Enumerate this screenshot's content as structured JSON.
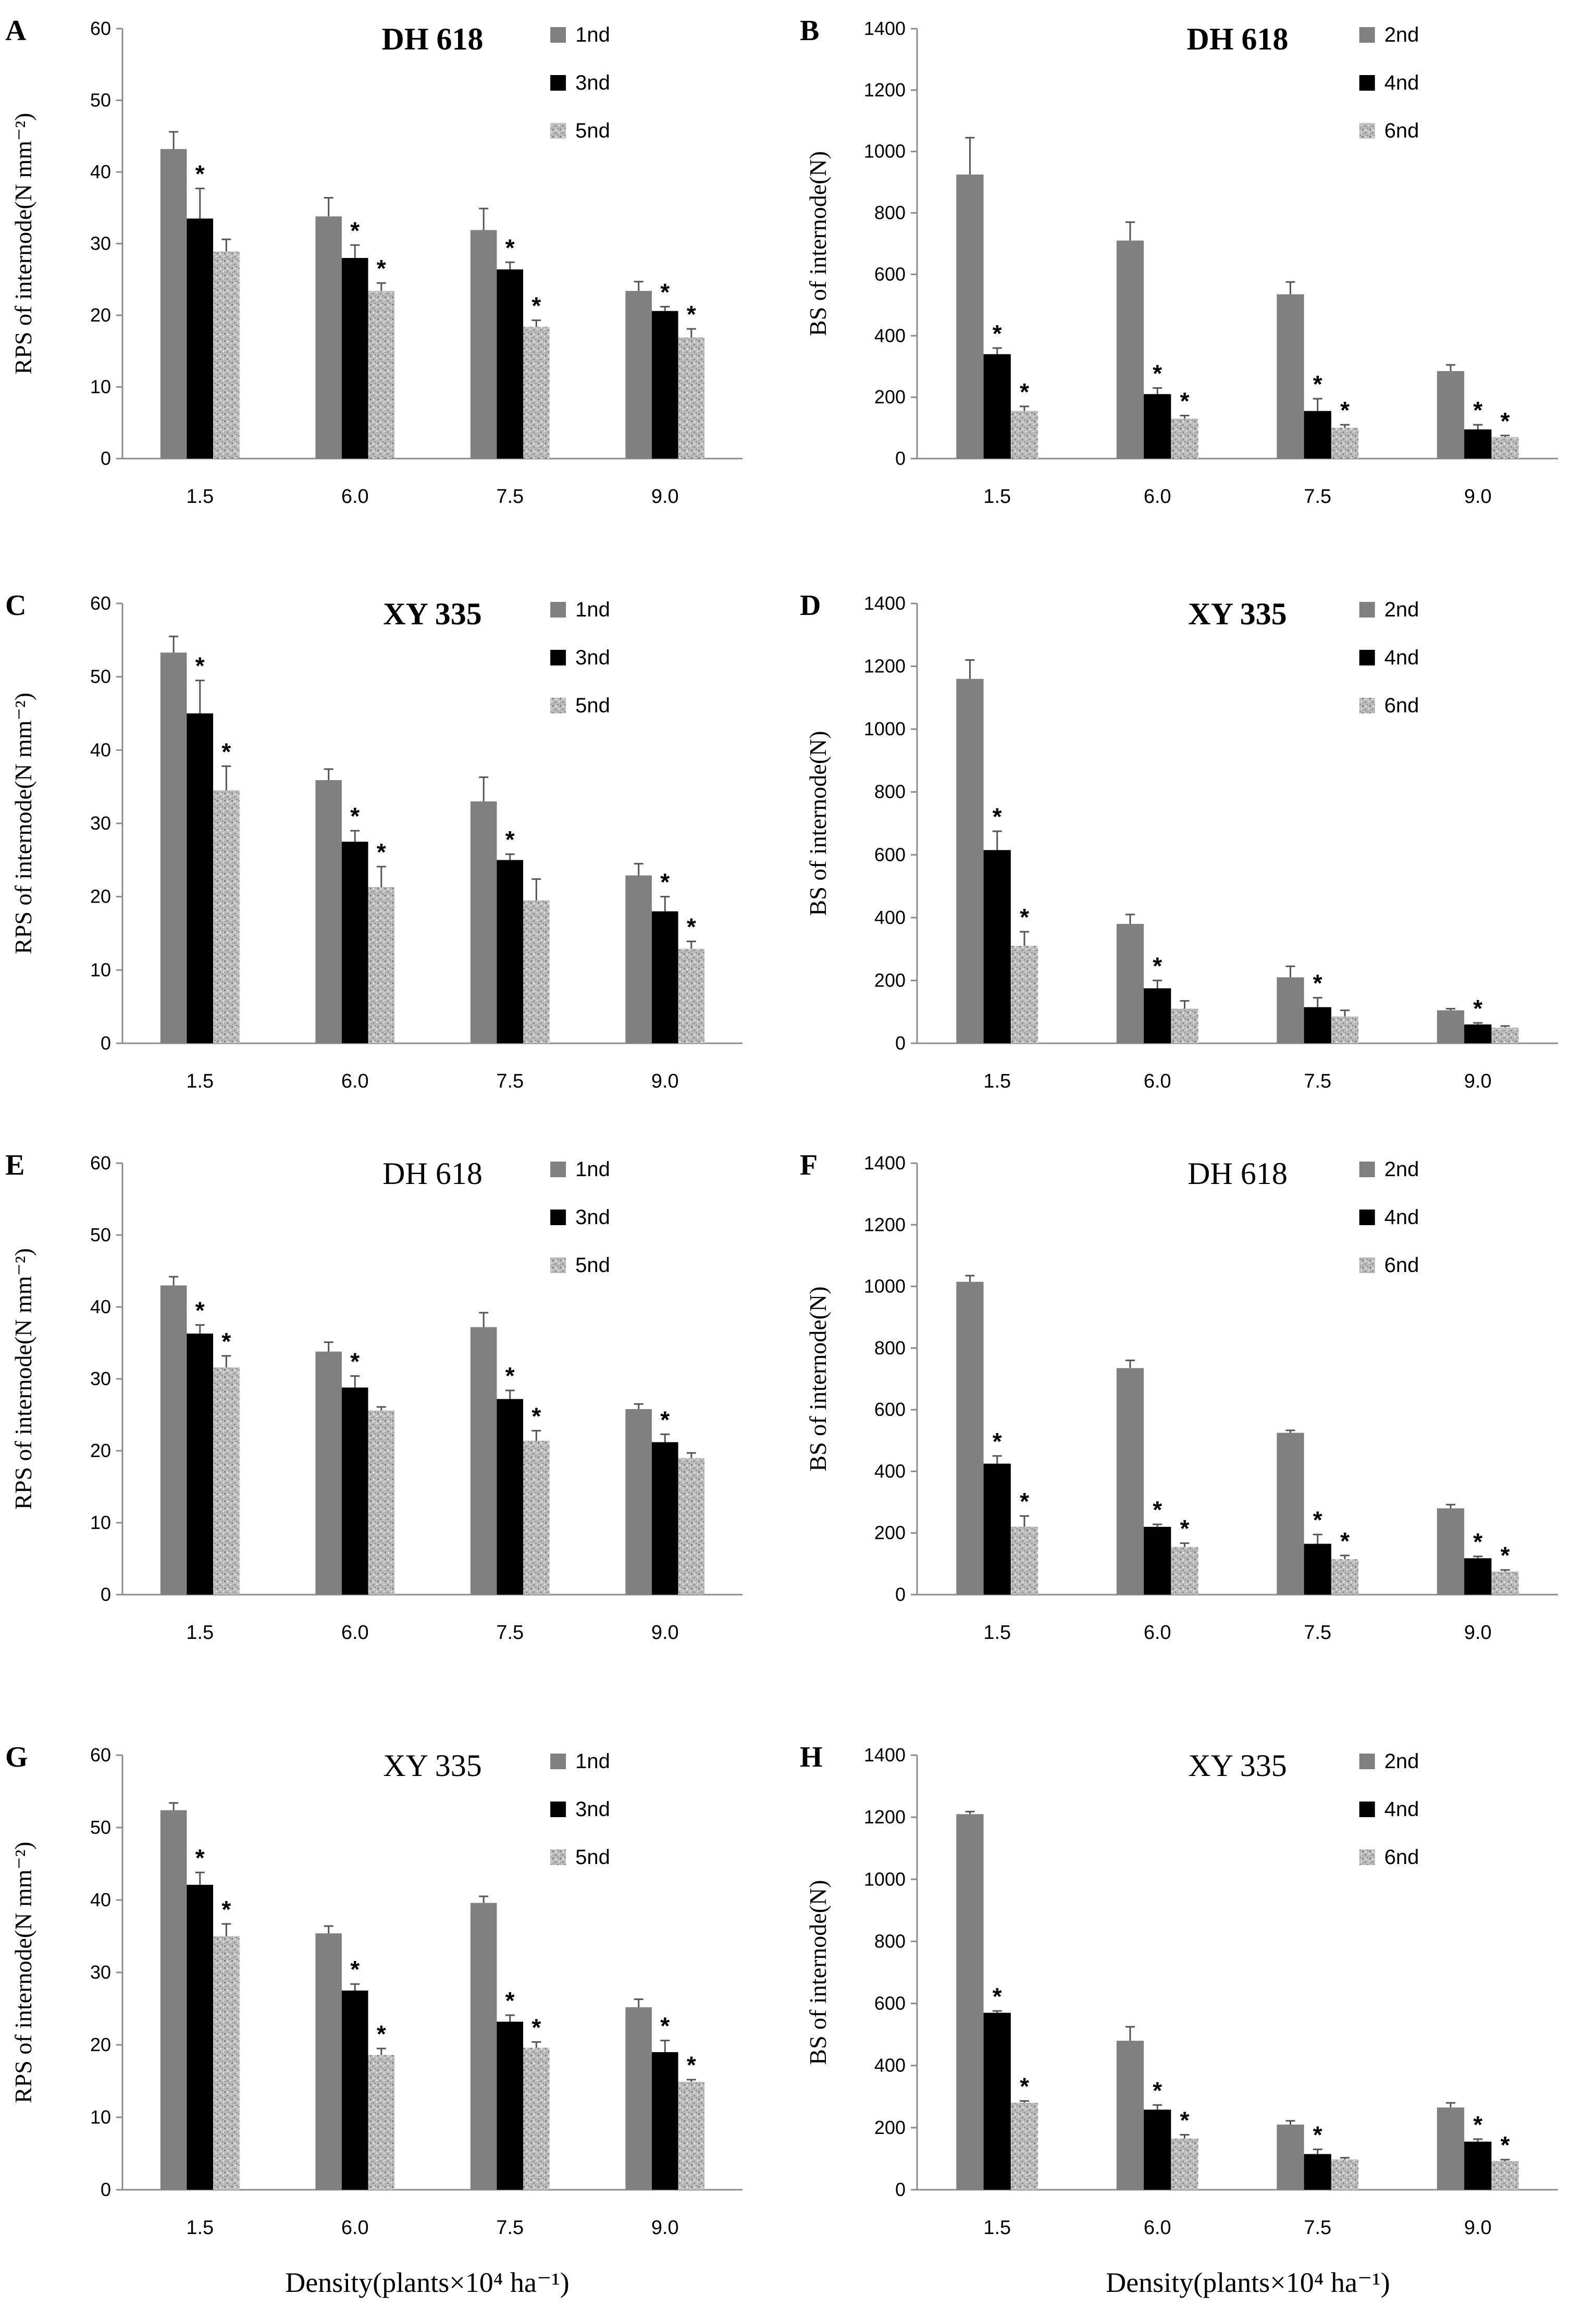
{
  "colors": {
    "series1": "#808080",
    "series2": "#000000",
    "series3": "#bdbdbd",
    "pattern_dark": "#8a8a8a",
    "axis": "#8c8c8c",
    "error": "#555555"
  },
  "x_axis_label": "Density(plants×10⁴ ha⁻¹)",
  "chart_data": [
    {
      "panel": "A",
      "type": "bar",
      "title": "DH 618",
      "title_bold": true,
      "ylabel": "RPS of internode(N mm⁻²)",
      "ylim": [
        0,
        60
      ],
      "yticks": [
        0,
        10,
        20,
        30,
        40,
        50,
        60
      ],
      "categories": [
        "1.5",
        "6.0",
        "7.5",
        "9.0"
      ],
      "series": [
        {
          "name": "1nd",
          "values": [
            43.2,
            33.8,
            31.9,
            23.4
          ],
          "errors": [
            2.4,
            2.6,
            3.0,
            1.3
          ],
          "stars": [
            false,
            false,
            false,
            false
          ]
        },
        {
          "name": "3nd",
          "values": [
            33.5,
            28.0,
            26.4,
            20.6
          ],
          "errors": [
            4.2,
            1.8,
            1.0,
            0.6
          ],
          "stars": [
            true,
            true,
            true,
            true
          ]
        },
        {
          "name": "5nd",
          "values": [
            28.9,
            23.4,
            18.4,
            16.9
          ],
          "errors": [
            1.7,
            1.1,
            0.9,
            1.2
          ],
          "stars": [
            false,
            true,
            true,
            true
          ]
        }
      ]
    },
    {
      "panel": "B",
      "type": "bar",
      "title": "DH 618",
      "title_bold": true,
      "ylabel": "BS of internode(N)",
      "ylim": [
        0,
        1400
      ],
      "yticks": [
        0,
        200,
        400,
        600,
        800,
        1000,
        1200,
        1400
      ],
      "categories": [
        "1.5",
        "6.0",
        "7.5",
        "9.0"
      ],
      "series": [
        {
          "name": "2nd",
          "values": [
            925,
            710,
            535,
            285
          ],
          "errors": [
            120,
            60,
            40,
            20
          ],
          "stars": [
            false,
            false,
            false,
            false
          ]
        },
        {
          "name": "4nd",
          "values": [
            340,
            210,
            155,
            95
          ],
          "errors": [
            20,
            20,
            40,
            15
          ],
          "stars": [
            true,
            true,
            true,
            true
          ]
        },
        {
          "name": "6nd",
          "values": [
            155,
            130,
            100,
            70
          ],
          "errors": [
            15,
            10,
            10,
            5
          ],
          "stars": [
            true,
            true,
            true,
            true
          ]
        }
      ]
    },
    {
      "panel": "C",
      "type": "bar",
      "title": "XY 335",
      "title_bold": true,
      "ylabel": "RPS of internode(N mm⁻²)",
      "ylim": [
        0,
        60
      ],
      "yticks": [
        0,
        10,
        20,
        30,
        40,
        50,
        60
      ],
      "categories": [
        "1.5",
        "6.0",
        "7.5",
        "9.0"
      ],
      "series": [
        {
          "name": "1nd",
          "values": [
            53.3,
            35.9,
            33.0,
            22.9
          ],
          "errors": [
            2.2,
            1.5,
            3.3,
            1.6
          ],
          "stars": [
            false,
            false,
            false,
            false
          ]
        },
        {
          "name": "3nd",
          "values": [
            45.0,
            27.5,
            25.0,
            18.0
          ],
          "errors": [
            4.5,
            1.5,
            0.8,
            2.0
          ],
          "stars": [
            true,
            true,
            true,
            true
          ]
        },
        {
          "name": "5nd",
          "values": [
            34.5,
            21.3,
            19.5,
            12.9
          ],
          "errors": [
            3.3,
            2.8,
            2.9,
            1.0
          ],
          "stars": [
            true,
            true,
            false,
            true
          ]
        }
      ]
    },
    {
      "panel": "D",
      "type": "bar",
      "title": "XY 335",
      "title_bold": true,
      "ylabel": "BS of internode(N)",
      "ylim": [
        0,
        1400
      ],
      "yticks": [
        0,
        200,
        400,
        600,
        800,
        1000,
        1200,
        1400
      ],
      "categories": [
        "1.5",
        "6.0",
        "7.5",
        "9.0"
      ],
      "series": [
        {
          "name": "2nd",
          "values": [
            1160,
            380,
            210,
            105
          ],
          "errors": [
            60,
            30,
            35,
            5
          ],
          "stars": [
            false,
            false,
            false,
            false
          ]
        },
        {
          "name": "4nd",
          "values": [
            615,
            175,
            115,
            60
          ],
          "errors": [
            60,
            25,
            30,
            5
          ],
          "stars": [
            true,
            true,
            true,
            true
          ]
        },
        {
          "name": "6nd",
          "values": [
            310,
            110,
            85,
            50
          ],
          "errors": [
            45,
            25,
            20,
            5
          ],
          "stars": [
            true,
            false,
            false,
            false
          ]
        }
      ]
    },
    {
      "panel": "E",
      "type": "bar",
      "title": "DH 618",
      "title_bold": false,
      "ylabel": "RPS of internode(N mm⁻²)",
      "ylim": [
        0,
        60
      ],
      "yticks": [
        0,
        10,
        20,
        30,
        40,
        50,
        60
      ],
      "categories": [
        "1.5",
        "6.0",
        "7.5",
        "9.0"
      ],
      "series": [
        {
          "name": "1nd",
          "values": [
            43.0,
            33.8,
            37.2,
            25.8
          ],
          "errors": [
            1.2,
            1.3,
            2.0,
            0.7
          ],
          "stars": [
            false,
            false,
            false,
            false
          ]
        },
        {
          "name": "3nd",
          "values": [
            36.3,
            28.8,
            27.2,
            21.2
          ],
          "errors": [
            1.2,
            1.6,
            1.2,
            1.1
          ],
          "stars": [
            true,
            true,
            true,
            true
          ]
        },
        {
          "name": "5nd",
          "values": [
            31.6,
            25.6,
            21.4,
            19.0
          ],
          "errors": [
            1.6,
            0.5,
            1.4,
            0.7
          ],
          "stars": [
            true,
            false,
            true,
            false
          ]
        }
      ]
    },
    {
      "panel": "F",
      "type": "bar",
      "title": "DH 618",
      "title_bold": false,
      "ylabel": "BS of internode(N)",
      "ylim": [
        0,
        1400
      ],
      "yticks": [
        0,
        200,
        400,
        600,
        800,
        1000,
        1200,
        1400
      ],
      "categories": [
        "1.5",
        "6.0",
        "7.5",
        "9.0"
      ],
      "series": [
        {
          "name": "2nd",
          "values": [
            1015,
            735,
            525,
            280
          ],
          "errors": [
            20,
            25,
            8,
            12
          ],
          "stars": [
            false,
            false,
            false,
            false
          ]
        },
        {
          "name": "4nd",
          "values": [
            425,
            220,
            165,
            118
          ],
          "errors": [
            25,
            8,
            30,
            6
          ],
          "stars": [
            true,
            true,
            true,
            true
          ]
        },
        {
          "name": "6nd",
          "values": [
            220,
            155,
            115,
            75
          ],
          "errors": [
            35,
            12,
            12,
            5
          ],
          "stars": [
            true,
            true,
            true,
            true
          ]
        }
      ]
    },
    {
      "panel": "G",
      "type": "bar",
      "title": "XY 335",
      "title_bold": false,
      "ylabel": "RPS of internode(N mm⁻²)",
      "ylim": [
        0,
        60
      ],
      "yticks": [
        0,
        10,
        20,
        30,
        40,
        50,
        60
      ],
      "categories": [
        "1.5",
        "6.0",
        "7.5",
        "9.0"
      ],
      "series": [
        {
          "name": "1nd",
          "values": [
            52.4,
            35.4,
            39.6,
            25.2
          ],
          "errors": [
            1.0,
            1.0,
            0.9,
            1.1
          ],
          "stars": [
            false,
            false,
            false,
            false
          ]
        },
        {
          "name": "3nd",
          "values": [
            42.1,
            27.5,
            23.2,
            19.0
          ],
          "errors": [
            1.7,
            0.9,
            0.9,
            1.6
          ],
          "stars": [
            true,
            true,
            true,
            true
          ]
        },
        {
          "name": "5nd",
          "values": [
            35.0,
            18.6,
            19.6,
            14.9
          ],
          "errors": [
            1.7,
            0.9,
            0.8,
            0.3
          ],
          "stars": [
            true,
            true,
            true,
            true
          ]
        }
      ]
    },
    {
      "panel": "H",
      "type": "bar",
      "title": "XY 335",
      "title_bold": false,
      "ylabel": "BS of internode(N)",
      "ylim": [
        0,
        1400
      ],
      "yticks": [
        0,
        200,
        400,
        600,
        800,
        1000,
        1200,
        1400
      ],
      "categories": [
        "1.5",
        "6.0",
        "7.5",
        "9.0"
      ],
      "series": [
        {
          "name": "2nd",
          "values": [
            1210,
            480,
            210,
            265
          ],
          "errors": [
            8,
            45,
            12,
            15
          ],
          "stars": [
            false,
            false,
            false,
            false
          ]
        },
        {
          "name": "4nd",
          "values": [
            570,
            258,
            115,
            155
          ],
          "errors": [
            6,
            15,
            15,
            8
          ],
          "stars": [
            true,
            true,
            true,
            true
          ]
        },
        {
          "name": "6nd",
          "values": [
            280,
            165,
            98,
            92
          ],
          "errors": [
            6,
            12,
            5,
            5
          ],
          "stars": [
            true,
            true,
            false,
            true
          ]
        }
      ]
    }
  ]
}
